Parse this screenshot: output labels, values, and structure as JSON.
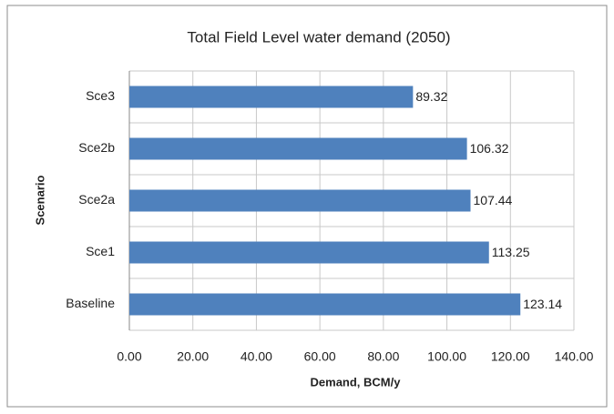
{
  "chart_data": {
    "type": "bar",
    "orientation": "horizontal",
    "title": "Total Field Level water demand (2050)",
    "x_label": "Demand, BCM/y",
    "y_label": "Scenario",
    "categories": [
      "Sce3",
      "Sce2b",
      "Sce2a",
      "Sce1",
      "Baseline"
    ],
    "values": [
      89.32,
      106.32,
      107.44,
      113.25,
      123.14
    ],
    "color": "#4f81bd",
    "xlim": [
      0,
      140
    ],
    "xticks": [
      {
        "value": 0,
        "label": "0.00"
      },
      {
        "value": 20,
        "label": "20.00"
      },
      {
        "value": 40,
        "label": "40.00"
      },
      {
        "value": 60,
        "label": "60.00"
      },
      {
        "value": 80,
        "label": "80.00"
      },
      {
        "value": 100,
        "label": "100.00"
      },
      {
        "value": 120,
        "label": "120.00"
      },
      {
        "value": 140,
        "label": "140.00"
      }
    ],
    "grid": true
  }
}
